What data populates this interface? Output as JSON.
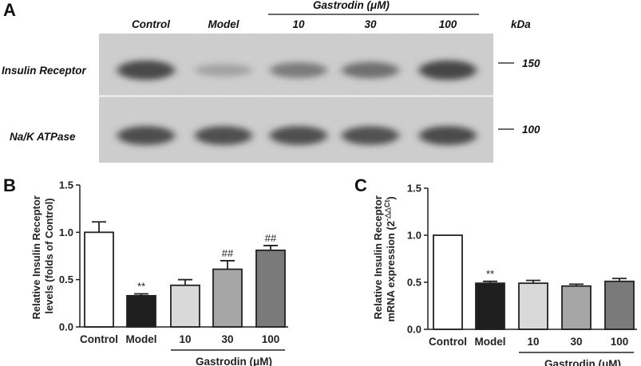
{
  "panel_a": {
    "letter": "A",
    "group_label": "Gastrodin (μM)",
    "unit_label": "kDa",
    "lanes": [
      "Control",
      "Model",
      "10",
      "30",
      "100"
    ],
    "rows": [
      {
        "label": "Insulin Receptor",
        "marker": "150",
        "intensities": [
          0.88,
          0.28,
          0.55,
          0.62,
          0.9
        ]
      },
      {
        "label": "Na/K ATPase",
        "marker": "100",
        "intensities": [
          0.85,
          0.84,
          0.84,
          0.83,
          0.86
        ]
      }
    ]
  },
  "chart_data": [
    {
      "panel": "B",
      "type": "bar",
      "categories": [
        "Control",
        "Model",
        "10",
        "30",
        "100"
      ],
      "values": [
        1.0,
        0.33,
        0.44,
        0.61,
        0.81
      ],
      "errors": [
        0.11,
        0.02,
        0.06,
        0.09,
        0.05
      ],
      "annotations": [
        "",
        "**",
        "",
        "##",
        "##"
      ],
      "bar_colors": [
        "#ffffff",
        "#1e1e1e",
        "#d9d9d9",
        "#a6a6a6",
        "#7a7a7a"
      ],
      "ylabel_lines": [
        "Relative Insulin Receptor",
        "levels (folds of Control)"
      ],
      "ylim": [
        0,
        1.5
      ],
      "yticks": [
        "0.0",
        "0.5",
        "1.0",
        "1.5"
      ],
      "group_label": "Gastrodin (μM)",
      "grid": false
    },
    {
      "panel": "C",
      "type": "bar",
      "categories": [
        "Control",
        "Model",
        "10",
        "30",
        "100"
      ],
      "values": [
        1.0,
        0.49,
        0.49,
        0.46,
        0.51
      ],
      "errors": [
        0.0,
        0.02,
        0.03,
        0.02,
        0.03
      ],
      "annotations": [
        "",
        "**",
        "",
        "",
        ""
      ],
      "bar_colors": [
        "#ffffff",
        "#1e1e1e",
        "#d9d9d9",
        "#a6a6a6",
        "#7a7a7a"
      ],
      "ylabel_lines": [
        "Relative Insulin Receptor",
        "mRNA expression (2",
        "-△△Ct",
        ")"
      ],
      "ylim": [
        0,
        1.5
      ],
      "yticks": [
        "0.0",
        "0.5",
        "1.0",
        "1.5"
      ],
      "group_label": "Gastrodin (μM)",
      "grid": false
    }
  ]
}
